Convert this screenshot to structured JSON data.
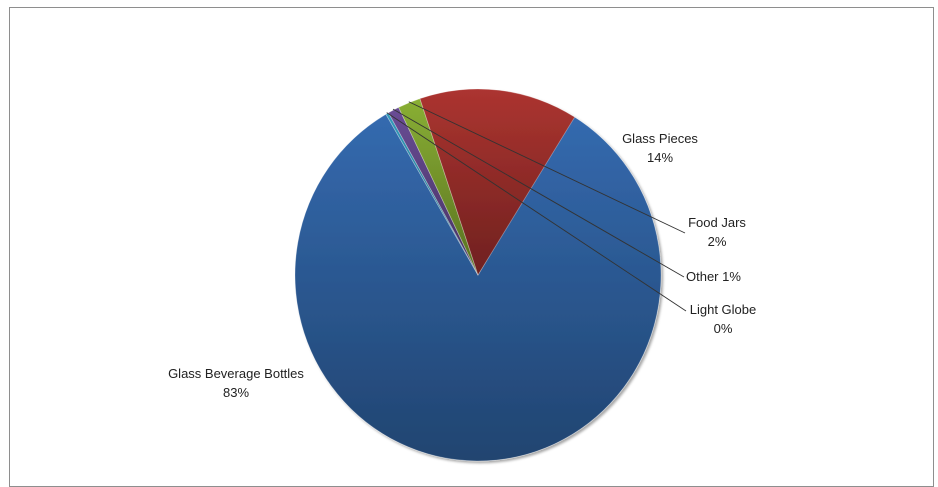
{
  "chart_data": {
    "type": "pie",
    "title": "",
    "slices": [
      {
        "label": "Glass Beverage Bottles",
        "value": 83,
        "value_label": "83%",
        "color": "#2E5F9C"
      },
      {
        "label": "Glass Pieces",
        "value": 14,
        "value_label": "14%",
        "color": "#9A2E2B"
      },
      {
        "label": "Food Jars",
        "value": 2,
        "value_label": "2%",
        "color": "#7A9C2E"
      },
      {
        "label": "Other",
        "value": 1,
        "value_label": "1%",
        "color": "#5E4485"
      },
      {
        "label": "Light Globe",
        "value": 0,
        "value_label": "0%",
        "color": "#2C8AA8"
      }
    ],
    "legend": "none"
  }
}
